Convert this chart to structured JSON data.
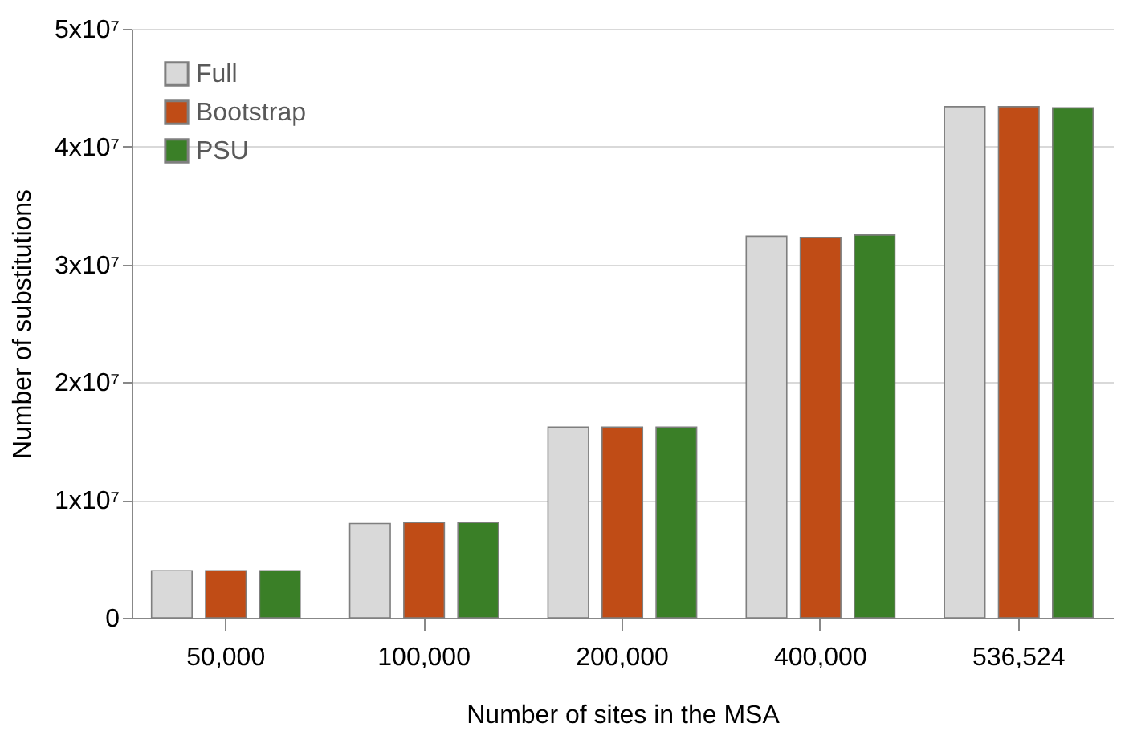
{
  "chart_data": {
    "type": "bar",
    "xlabel": "Number of sites in the MSA",
    "ylabel": "Number of substitutions",
    "categories": [
      "50,000",
      "100,000",
      "200,000",
      "400,000",
      "536,524"
    ],
    "series": [
      {
        "name": "Full",
        "color": "#d9d9d9",
        "values": [
          4000000,
          8000000,
          16200000,
          32400000,
          43400000
        ]
      },
      {
        "name": "Bootstrap",
        "color": "#c04c16",
        "values": [
          4000000,
          8100000,
          16200000,
          32300000,
          43400000
        ]
      },
      {
        "name": "PSU",
        "color": "#3a7f27",
        "values": [
          4000000,
          8100000,
          16200000,
          32500000,
          43300000
        ]
      }
    ],
    "ylim": [
      0,
      50000000
    ],
    "yticks": [
      0,
      {
        "value": 10000000,
        "label": "1x10⁷"
      },
      {
        "value": 20000000,
        "label": "2x10⁷"
      },
      {
        "value": 30000000,
        "label": "3x10⁷"
      },
      {
        "value": 40000000,
        "label": "4x10⁷"
      },
      {
        "value": 50000000,
        "label": "5x10⁷"
      }
    ],
    "grid": "y",
    "legend": "top left"
  }
}
